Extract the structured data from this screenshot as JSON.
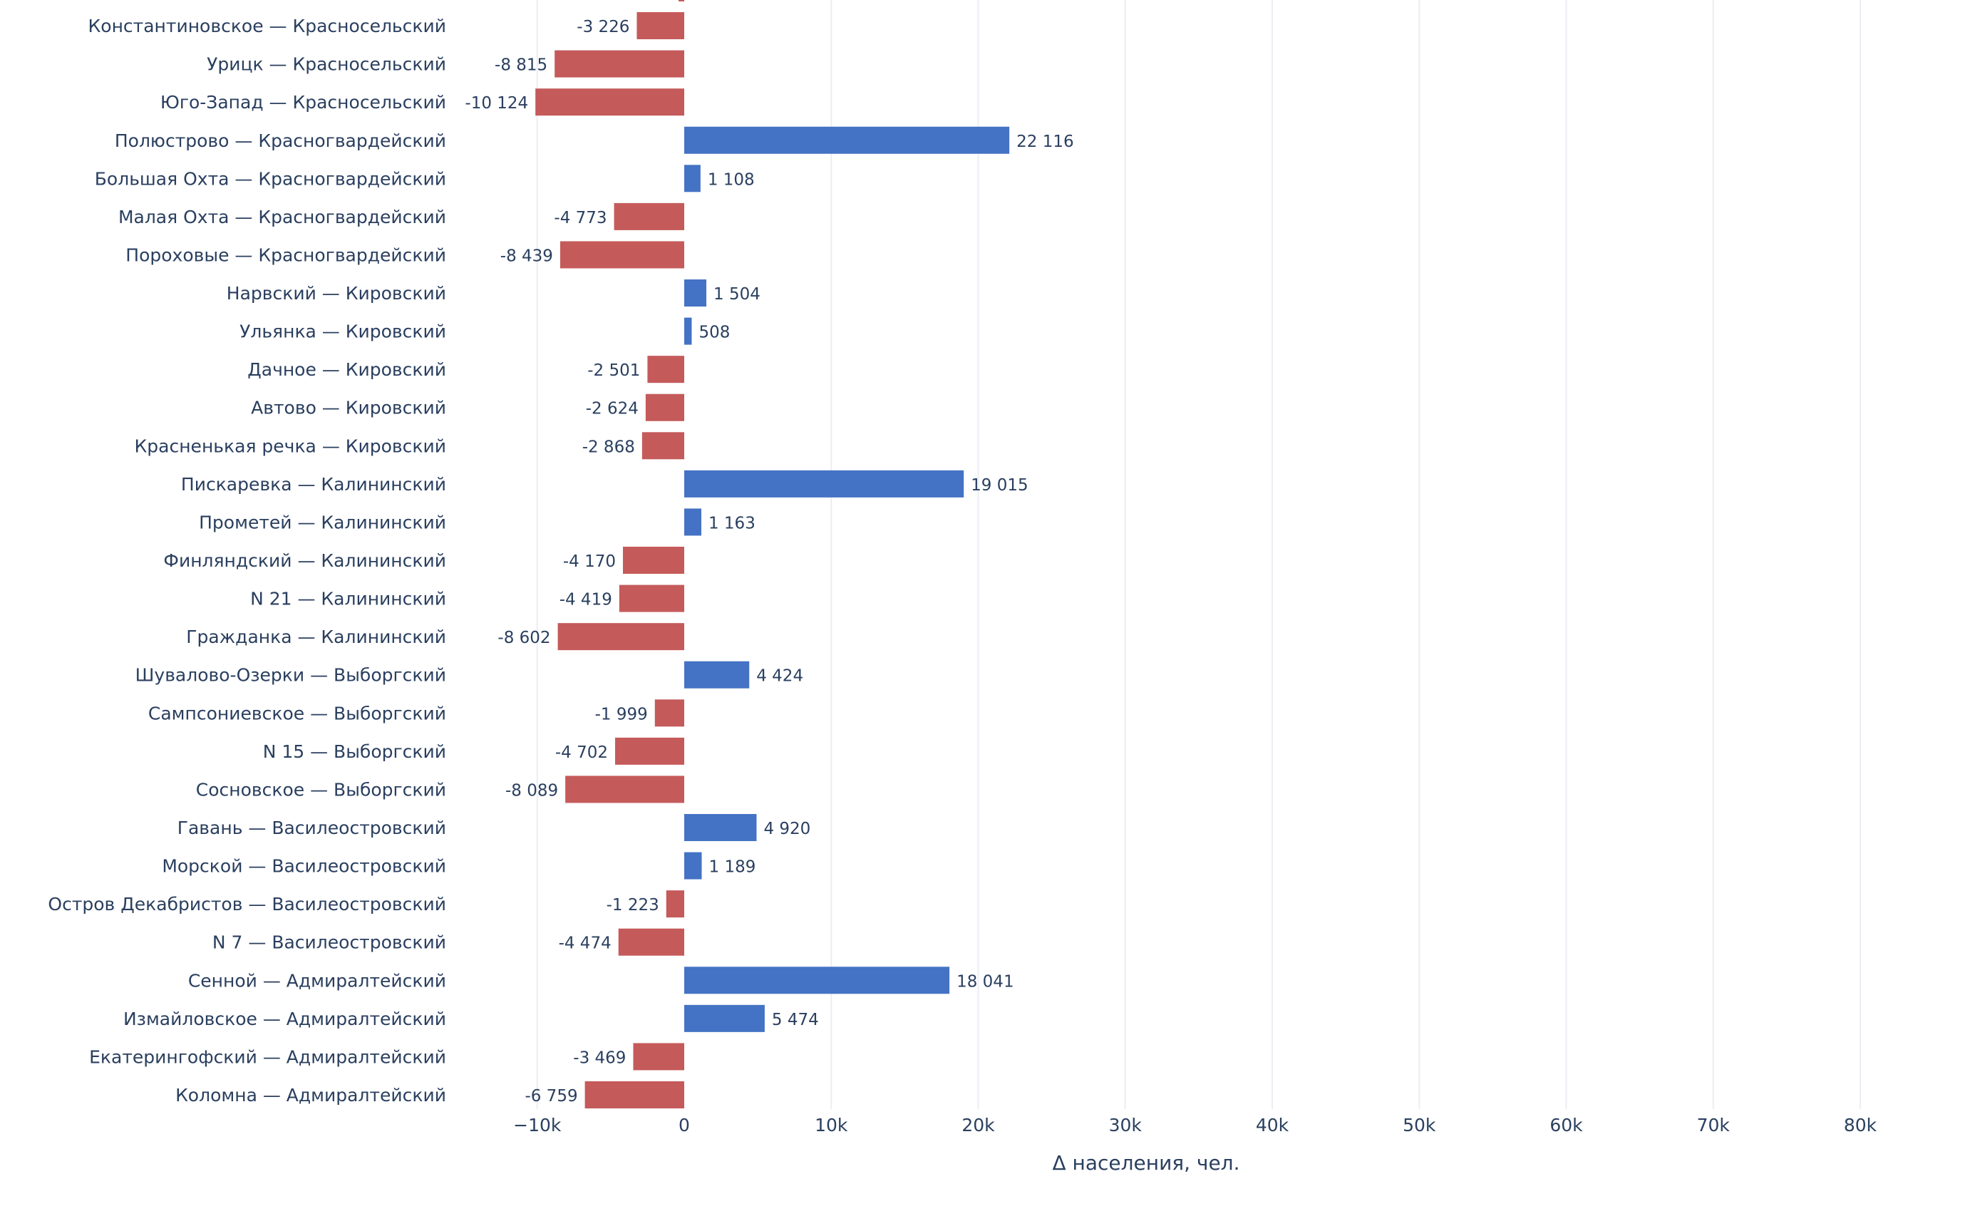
{
  "chart_data": {
    "type": "bar",
    "orientation": "horizontal",
    "xlabel": "Δ населения, чел.",
    "xlim": [
      -13000,
      88000
    ],
    "x_ticks": [
      -10000,
      0,
      10000,
      20000,
      30000,
      40000,
      50000,
      60000,
      70000,
      80000
    ],
    "x_tick_labels": [
      "−10k",
      "0",
      "10k",
      "20k",
      "30k",
      "40k",
      "50k",
      "60k",
      "70k",
      "80k"
    ],
    "grid": true,
    "colors": {
      "positive": "#4472c4",
      "negative": "#c55a5a",
      "grid": "#ebeef3",
      "zero": "#ffffff",
      "text": "#2a3f5f"
    },
    "categories": [
      "Коломна — Адмиралтейский",
      "Екатерингофский — Адмиралтейский",
      "Измайловское — Адмиралтейский",
      "Сенной — Адмиралтейский",
      "N 7 — Василеостровский",
      "Остров Декабристов — Василеостровский",
      "Морской — Василеостровский",
      "Гавань — Василеостровский",
      "Сосновское — Выборгский",
      "N 15 — Выборгский",
      "Сампсониевское — Выборгский",
      "Шувалово-Озерки — Выборгский",
      "Гражданка — Калининский",
      "N 21 — Калининский",
      "Финляндский — Калининский",
      "Прометей — Калининский",
      "Пискаревка — Калининский",
      "Красненькая речка — Кировский",
      "Автово — Кировский",
      "Дачное — Кировский",
      "Ульянка — Кировский",
      "Нарвский — Кировский",
      "Пороховые — Красногвардейский",
      "Малая Охта — Красногвардейский",
      "Большая Охта — Красногвардейский",
      "Полюстрово — Красногвардейский",
      "Юго-Запад — Красносельский",
      "Урицк — Красносельский",
      "Константиновское — Красносельский"
    ],
    "values": [
      -6759,
      -3469,
      5474,
      18041,
      -4474,
      -1223,
      1189,
      4920,
      -8089,
      -4702,
      -1999,
      4424,
      -8602,
      -4419,
      -4170,
      1163,
      19015,
      -2868,
      -2624,
      -2501,
      508,
      1504,
      -8439,
      -4773,
      1108,
      22116,
      -10124,
      -8815,
      -3226
    ],
    "value_labels": [
      "-6 759",
      "-3 469",
      "5 474",
      "18 041",
      "-4 474",
      "-1 223",
      "1 189",
      "4 920",
      "-8 089",
      "-4 702",
      "-1 999",
      "4 424",
      "-8 602",
      "-4 419",
      "-4 170",
      "1 163",
      "19 015",
      "-2 868",
      "-2 624",
      "-2 501",
      "508",
      "1 504",
      "-8 439",
      "-4 773",
      "1 108",
      "22 116",
      "-10 124",
      "-8 815",
      "-3 226"
    ]
  }
}
